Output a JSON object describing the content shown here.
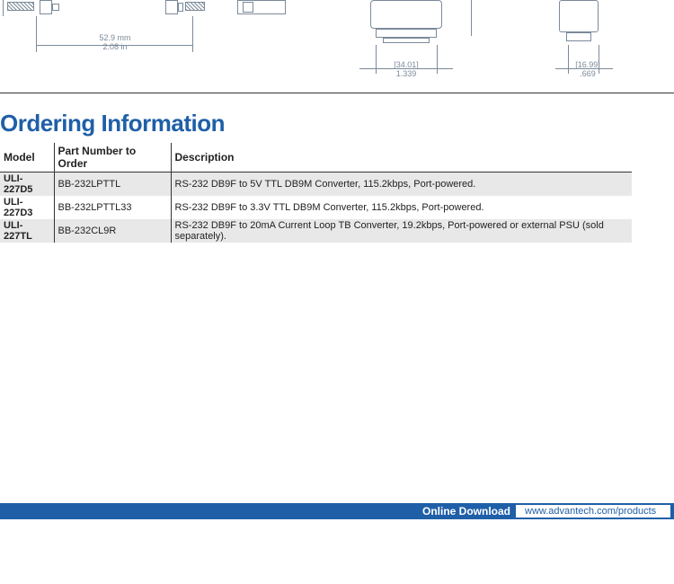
{
  "diagrams": {
    "dim1": {
      "mm": "52.9 mm",
      "in": "2.08 in"
    },
    "dim2": {
      "mm": "[34.01]",
      "in": "1.339"
    },
    "dim3": {
      "mm": "[16.99]",
      "in": ".669"
    }
  },
  "heading": "Ordering Information",
  "table": {
    "headers": [
      "Model",
      "Part Number to Order",
      "Description"
    ],
    "rows": [
      [
        "ULI-227D5",
        "BB-232LPTTL",
        "RS-232 DB9F to 5V TTL DB9M Converter, 115.2kbps, Port-powered."
      ],
      [
        "ULI-227D3",
        "BB-232LPTTL33",
        "RS-232 DB9F to 3.3V TTL DB9M Converter, 115.2kbps, Port-powered."
      ],
      [
        "ULI-227TL",
        "BB-232CL9R",
        "RS-232 DB9F to 20mA Current Loop TB Converter, 19.2kbps, Port-powered or external PSU (sold separately)."
      ]
    ],
    "col_widths": [
      "60px",
      "130px",
      "513px"
    ]
  },
  "footer": {
    "label": "Online Download",
    "url": "www.advantech.com/products"
  },
  "colors": {
    "brand": "#1f5fa8",
    "line": "#7b8a99",
    "row_alt": "#e8e8e8"
  }
}
